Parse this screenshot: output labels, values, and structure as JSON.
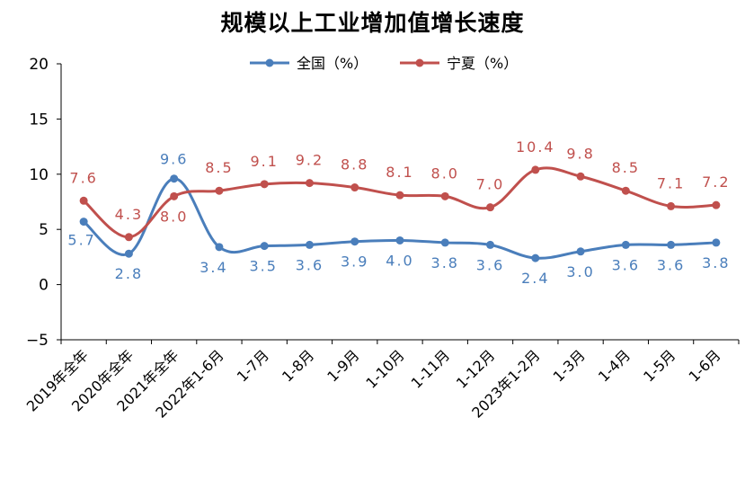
{
  "chart_data": {
    "type": "line",
    "title": "规模以上工业增加值增长速度",
    "categories": [
      "2019年全年",
      "2020年全年",
      "2021年全年",
      "2022年1-6月",
      "1-7月",
      "1-8月",
      "1-9月",
      "1-10月",
      "1-11月",
      "1-12月",
      "2023年1-2月",
      "1-3月",
      "1-4月",
      "1-5月",
      "1-6月"
    ],
    "series": [
      {
        "name": "全国（%）",
        "color": "#4a7ebb",
        "values": [
          5.7,
          2.8,
          9.6,
          3.4,
          3.5,
          3.6,
          3.9,
          4.0,
          3.8,
          3.6,
          2.4,
          3.0,
          3.6,
          3.6,
          3.8
        ],
        "labels": [
          "5.7",
          "2.8",
          "9.6",
          "3.4",
          "3.5",
          "3.6",
          "3.9",
          "4.0",
          "3.8",
          "3.6",
          "2.4",
          "3.0",
          "3.6",
          "3.6",
          "3.8"
        ]
      },
      {
        "name": "宁夏（%）",
        "color": "#c0504d",
        "values": [
          7.6,
          4.3,
          8.0,
          8.5,
          9.1,
          9.2,
          8.8,
          8.1,
          8.0,
          7.0,
          10.4,
          9.8,
          8.5,
          7.1,
          7.2
        ],
        "labels": [
          "7.6",
          "4.3",
          "8.0",
          "8.5",
          "9.1",
          "9.2",
          "8.8",
          "8.1",
          "8.0",
          "7.0",
          "10.4",
          "9.8",
          "8.5",
          "7.1",
          "7.2"
        ]
      }
    ],
    "ylim": [
      -5,
      20
    ],
    "yticks": [
      "-5",
      "0",
      "5",
      "10",
      "15",
      "20"
    ],
    "grid": false,
    "legend": "top-center"
  }
}
